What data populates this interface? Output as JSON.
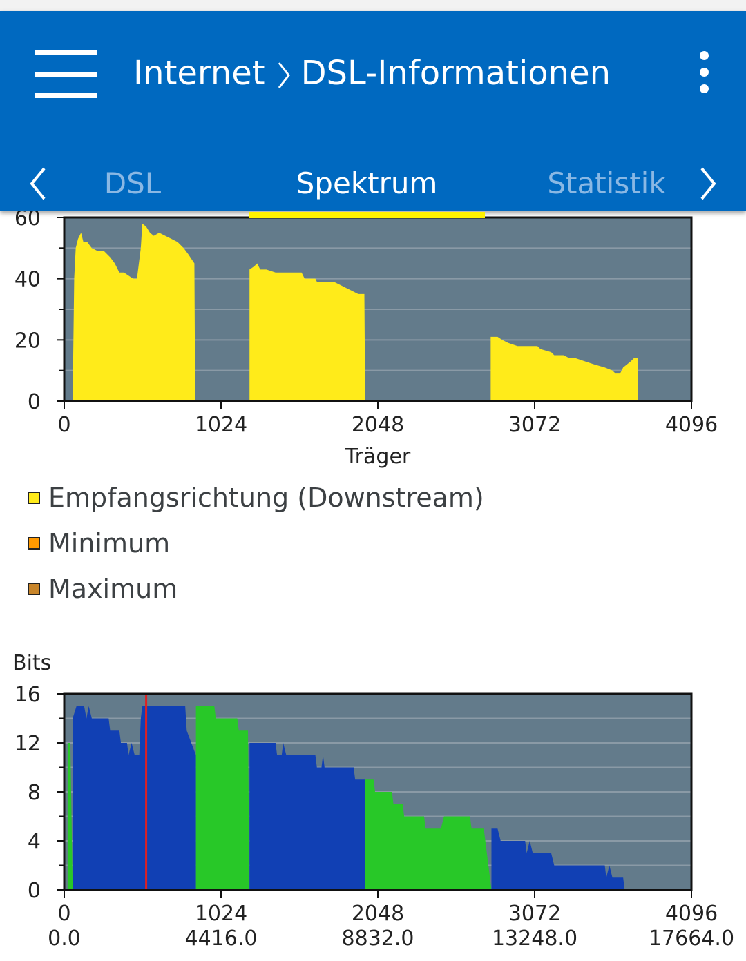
{
  "header": {
    "breadcrumb_root": "Internet",
    "breadcrumb_page": "DSL-Informationen",
    "menu_icon": "hamburger-menu-icon",
    "overflow_icon": "more-vert-icon"
  },
  "tabs": {
    "items": [
      {
        "label": "DSL",
        "active": false
      },
      {
        "label": "Spektrum",
        "active": true
      },
      {
        "label": "Statistik",
        "active": false
      }
    ],
    "indicator_color": "#fff200"
  },
  "colors": {
    "appbar": "#0069c0",
    "plot_bg": "#637b8b",
    "downstream": "#ffeb1a",
    "minimum": "#ff9900",
    "maximum": "#c8852a",
    "bits_blue": "#1140b4",
    "bits_green": "#28c828",
    "marker_red": "#e02020"
  },
  "legend": {
    "downstream": "Empfangsrichtung (Downstream)",
    "minimum": "Minimum",
    "maximum": "Maximum"
  },
  "chart_data": [
    {
      "type": "area",
      "title": "",
      "xlabel": "Träger",
      "ylabel": "",
      "xlim": [
        0,
        4096
      ],
      "ylim": [
        0,
        60
      ],
      "x_ticks": [
        "0",
        "1024",
        "2048",
        "3072",
        "4096"
      ],
      "y_ticks": [
        "0",
        "20",
        "40",
        "60"
      ],
      "grid": true,
      "series": [
        {
          "name": "Empfangsrichtung (Downstream)",
          "segments": [
            [
              [
                55,
                0
              ],
              [
                65,
                40
              ],
              [
                75,
                50
              ],
              [
                90,
                53
              ],
              [
                110,
                55
              ],
              [
                125,
                52
              ],
              [
                150,
                52
              ],
              [
                180,
                50
              ],
              [
                220,
                49
              ],
              [
                260,
                49
              ],
              [
                300,
                47
              ],
              [
                330,
                45
              ],
              [
                360,
                42
              ],
              [
                390,
                42
              ],
              [
                420,
                41
              ],
              [
                450,
                40
              ],
              [
                475,
                40
              ],
              [
                500,
                50
              ],
              [
                510,
                58
              ],
              [
                535,
                57
              ],
              [
                560,
                55
              ],
              [
                585,
                54
              ],
              [
                620,
                55
              ],
              [
                660,
                54
              ],
              [
                700,
                53
              ],
              [
                740,
                52
              ],
              [
                780,
                50
              ],
              [
                810,
                48
              ],
              [
                850,
                45
              ],
              [
                855,
                0
              ]
            ],
            [
              [
                1210,
                0
              ],
              [
                1210,
                43
              ],
              [
                1240,
                44
              ],
              [
                1260,
                45
              ],
              [
                1280,
                43
              ],
              [
                1320,
                43
              ],
              [
                1380,
                42
              ],
              [
                1450,
                42
              ],
              [
                1550,
                42
              ],
              [
                1570,
                40
              ],
              [
                1640,
                40
              ],
              [
                1650,
                39
              ],
              [
                1760,
                39
              ],
              [
                1800,
                38
              ],
              [
                1840,
                37
              ],
              [
                1880,
                36
              ],
              [
                1920,
                35
              ],
              [
                1960,
                35
              ],
              [
                1965,
                0
              ]
            ],
            [
              [
                2785,
                0
              ],
              [
                2785,
                21
              ],
              [
                2830,
                21
              ],
              [
                2860,
                20
              ],
              [
                2900,
                19
              ],
              [
                2960,
                18
              ],
              [
                3030,
                18
              ],
              [
                3090,
                18
              ],
              [
                3110,
                17
              ],
              [
                3180,
                16
              ],
              [
                3200,
                15
              ],
              [
                3260,
                15
              ],
              [
                3300,
                14
              ],
              [
                3340,
                14
              ],
              [
                3400,
                13
              ],
              [
                3460,
                12
              ],
              [
                3530,
                11
              ],
              [
                3580,
                10
              ],
              [
                3600,
                9
              ],
              [
                3630,
                9
              ],
              [
                3650,
                11
              ],
              [
                3700,
                13
              ],
              [
                3720,
                14
              ],
              [
                3745,
                14
              ],
              [
                3745,
                0
              ]
            ]
          ]
        }
      ]
    },
    {
      "type": "area",
      "title": "",
      "ylabel": "Bits",
      "xlim": [
        0,
        4096
      ],
      "ylim": [
        0,
        16
      ],
      "x_ticks": [
        "0",
        "1024",
        "2048",
        "3072",
        "4096"
      ],
      "x_ticks_secondary": [
        "0.0",
        "4416.0",
        "8832.0",
        "13248.0",
        "17664.0"
      ],
      "y_ticks": [
        "0",
        "4",
        "8",
        "12",
        "16"
      ],
      "grid": true,
      "marker_x": 535,
      "series": [
        {
          "name": "",
          "color_key": "bits_green",
          "points": [
            [
              22,
              0
            ],
            [
              22,
              12
            ],
            [
              40,
              12
            ],
            [
              55,
              0
            ]
          ]
        },
        {
          "name": "",
          "color_key": "bits_blue",
          "points": [
            [
              55,
              0
            ],
            [
              55,
              14
            ],
            [
              80,
              15
            ],
            [
              130,
              15
            ],
            [
              145,
              14
            ],
            [
              160,
              15
            ],
            [
              180,
              14
            ],
            [
              290,
              14
            ],
            [
              300,
              13
            ],
            [
              360,
              13
            ],
            [
              370,
              12
            ],
            [
              410,
              12
            ],
            [
              420,
              11
            ],
            [
              440,
              12
            ],
            [
              460,
              11
            ],
            [
              490,
              11
            ],
            [
              500,
              14
            ],
            [
              510,
              15
            ],
            [
              790,
              15
            ],
            [
              800,
              13
            ],
            [
              860,
              11
            ],
            [
              860,
              0
            ]
          ]
        },
        {
          "name": "",
          "color_key": "bits_green",
          "points": [
            [
              860,
              0
            ],
            [
              860,
              15
            ],
            [
              980,
              15
            ],
            [
              990,
              14
            ],
            [
              1130,
              14
            ],
            [
              1140,
              13
            ],
            [
              1200,
              13
            ],
            [
              1210,
              0
            ]
          ]
        },
        {
          "name": "",
          "color_key": "bits_blue",
          "points": [
            [
              1210,
              0
            ],
            [
              1210,
              12
            ],
            [
              1380,
              12
            ],
            [
              1390,
              11
            ],
            [
              1420,
              11
            ],
            [
              1430,
              12
            ],
            [
              1450,
              11
            ],
            [
              1640,
              11
            ],
            [
              1650,
              10
            ],
            [
              1680,
              10
            ],
            [
              1690,
              11
            ],
            [
              1700,
              10
            ],
            [
              1890,
              10
            ],
            [
              1900,
              9
            ],
            [
              1965,
              9
            ],
            [
              1965,
              0
            ]
          ]
        },
        {
          "name": "",
          "color_key": "bits_green",
          "points": [
            [
              1965,
              0
            ],
            [
              1965,
              9
            ],
            [
              2020,
              9
            ],
            [
              2030,
              8
            ],
            [
              2140,
              8
            ],
            [
              2150,
              7
            ],
            [
              2210,
              7
            ],
            [
              2220,
              6
            ],
            [
              2350,
              6
            ],
            [
              2360,
              5
            ],
            [
              2460,
              5
            ],
            [
              2480,
              6
            ],
            [
              2650,
              6
            ],
            [
              2660,
              5
            ],
            [
              2740,
              5
            ],
            [
              2790,
              0
            ]
          ]
        },
        {
          "name": "",
          "color_key": "bits_blue",
          "points": [
            [
              2790,
              0
            ],
            [
              2790,
              5
            ],
            [
              2830,
              5
            ],
            [
              2850,
              4
            ],
            [
              3010,
              4
            ],
            [
              3020,
              3
            ],
            [
              3040,
              4
            ],
            [
              3060,
              3
            ],
            [
              3180,
              3
            ],
            [
              3200,
              2
            ],
            [
              3530,
              2
            ],
            [
              3540,
              1
            ],
            [
              3560,
              2
            ],
            [
              3580,
              1
            ],
            [
              3650,
              1
            ],
            [
              3660,
              0
            ]
          ]
        }
      ]
    }
  ]
}
